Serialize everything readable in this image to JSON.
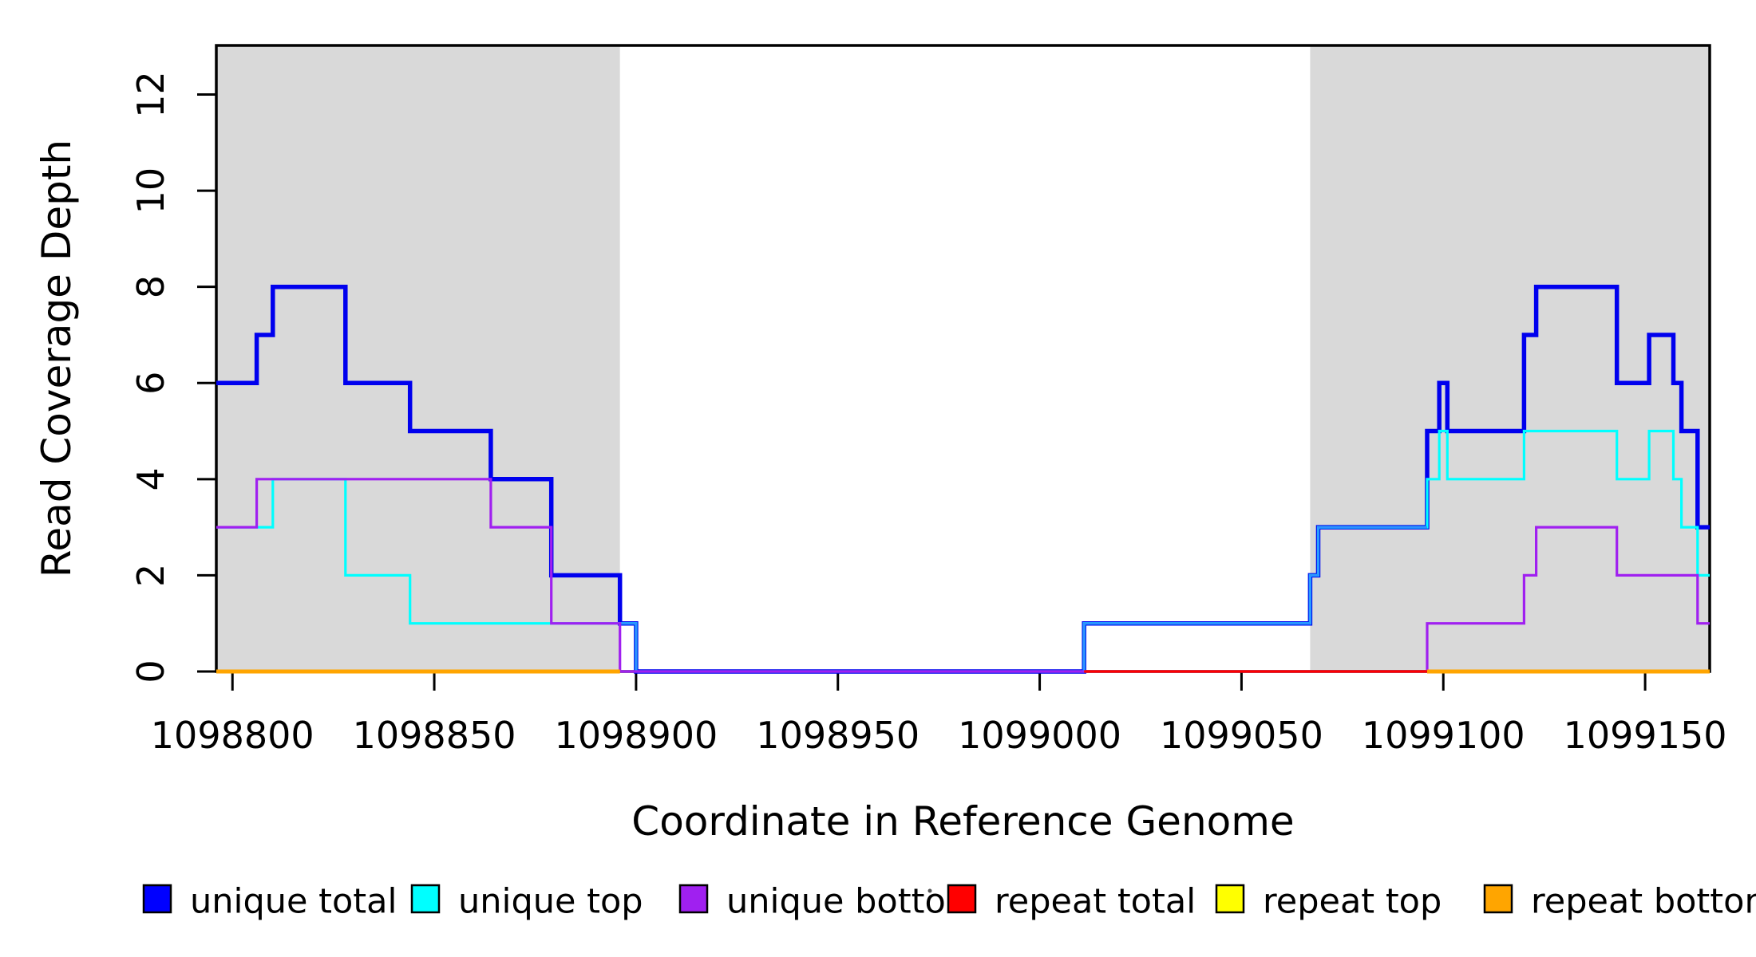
{
  "figure": {
    "background": "#ffffff",
    "region_fill": "#d9d9d9",
    "box_color": "#000000"
  },
  "chart_data": {
    "type": "line",
    "subtype": "step-after-coverage",
    "title": "",
    "xlabel": "Coordinate in Reference Genome",
    "ylabel": "Read Coverage Depth",
    "xlim": [
      1098796,
      1099166
    ],
    "ylim": [
      0,
      13
    ],
    "x_ticks": [
      1098800,
      1098850,
      1098900,
      1098950,
      1099000,
      1099050,
      1099100,
      1099150
    ],
    "x_tick_labels": [
      "1098800",
      "1098850",
      "1098900",
      "1098950",
      "1099000",
      "1099050",
      "1099100",
      "1099150"
    ],
    "y_ticks": [
      0,
      2,
      4,
      6,
      8,
      10,
      12
    ],
    "y_tick_labels": [
      "0",
      "2",
      "4",
      "6",
      "8",
      "10",
      "12"
    ],
    "grid": "off",
    "legend_position": "bottom",
    "shaded_regions": [
      {
        "name": "left-repeat-region",
        "x0": 1098796,
        "x1": 1098896,
        "fill": "#d9d9d9"
      },
      {
        "name": "right-repeat-region",
        "x0": 1099067,
        "x1": 1099166,
        "fill": "#d9d9d9"
      }
    ],
    "series": [
      {
        "name": "unique total",
        "color": "#0000EE",
        "width": 5.5,
        "segments": [
          [
            [
              1098796,
              6
            ],
            [
              1098806,
              7
            ],
            [
              1098810,
              8
            ],
            [
              1098828,
              6
            ],
            [
              1098844,
              5
            ],
            [
              1098864,
              4
            ],
            [
              1098879,
              2
            ],
            [
              1098896,
              1
            ],
            [
              1098900,
              0
            ],
            [
              1099011,
              1
            ],
            [
              1099067,
              2
            ],
            [
              1099069,
              3
            ],
            [
              1099096,
              5
            ],
            [
              1099099,
              6
            ],
            [
              1099101,
              5
            ],
            [
              1099120,
              7
            ],
            [
              1099123,
              8
            ],
            [
              1099143,
              6
            ],
            [
              1099151,
              7
            ],
            [
              1099157,
              6
            ],
            [
              1099159,
              5
            ],
            [
              1099163,
              3
            ],
            [
              1099166,
              3
            ]
          ]
        ]
      },
      {
        "name": "unique top",
        "color": "#00FFFF",
        "width": 3.2,
        "segments": [
          [
            [
              1098796,
              3
            ],
            [
              1098810,
              4
            ],
            [
              1098828,
              2
            ],
            [
              1098844,
              1
            ],
            [
              1098900,
              0
            ],
            [
              1099011,
              1
            ],
            [
              1099067,
              2
            ],
            [
              1099069,
              3
            ],
            [
              1099096,
              4
            ],
            [
              1099099,
              5
            ],
            [
              1099101,
              4
            ],
            [
              1099120,
              5
            ],
            [
              1099143,
              4
            ],
            [
              1099151,
              5
            ],
            [
              1099157,
              4
            ],
            [
              1099159,
              3
            ],
            [
              1099163,
              2
            ],
            [
              1099166,
              2
            ]
          ]
        ]
      },
      {
        "name": "unique bottom",
        "color": "#A020F0",
        "width": 3.2,
        "segments": [
          [
            [
              1098796,
              3
            ],
            [
              1098806,
              4
            ],
            [
              1098864,
              3
            ],
            [
              1098879,
              1
            ],
            [
              1098896,
              0
            ],
            [
              1099096,
              1
            ],
            [
              1099120,
              2
            ],
            [
              1099123,
              3
            ],
            [
              1099143,
              2
            ],
            [
              1099163,
              1
            ],
            [
              1099166,
              1
            ]
          ]
        ]
      },
      {
        "name": "repeat total",
        "color": "#FF0000",
        "width": 3.2,
        "segments": [
          [
            [
              1098796,
              0
            ],
            [
              1098896,
              0
            ]
          ],
          [
            [
              1099011,
              0
            ],
            [
              1099166,
              0
            ]
          ]
        ]
      },
      {
        "name": "repeat top",
        "color": "#FFFF00",
        "width": 3.2,
        "segments": [
          [
            [
              1098796,
              0
            ],
            [
              1098896,
              0
            ]
          ],
          [
            [
              1099096,
              0
            ],
            [
              1099166,
              0
            ]
          ]
        ]
      },
      {
        "name": "repeat bottom",
        "color": "#FFA500",
        "width": 5,
        "segments": [
          [
            [
              1098796,
              0
            ],
            [
              1098896,
              0
            ]
          ],
          [
            [
              1099096,
              0
            ],
            [
              1099166,
              0
            ]
          ]
        ]
      }
    ],
    "overlap_highlight": {
      "note": "where unique total and unique top coincide the line core renders light azure",
      "color": "#2F8FFF",
      "width": 2.6,
      "segments": [
        [
          [
            1098896,
            1
          ],
          [
            1098900,
            1
          ],
          [
            1098900,
            0
          ]
        ],
        [
          [
            1099011,
            0
          ],
          [
            1099011,
            1
          ],
          [
            1099067,
            2
          ],
          [
            1099069,
            3
          ],
          [
            1099096,
            3
          ]
        ]
      ]
    }
  },
  "legend": {
    "items": [
      {
        "label": "unique total",
        "color": "#0000FF"
      },
      {
        "label": "unique top",
        "color": "#00FFFF"
      },
      {
        "label": "unique bottom",
        "color": "#A020F0"
      },
      {
        "label": "repeat total",
        "color": "#FF0000"
      },
      {
        "label": "repeat top",
        "color": "#FFFF00"
      },
      {
        "label": "repeat bottom",
        "color": "#FFA500"
      }
    ]
  }
}
